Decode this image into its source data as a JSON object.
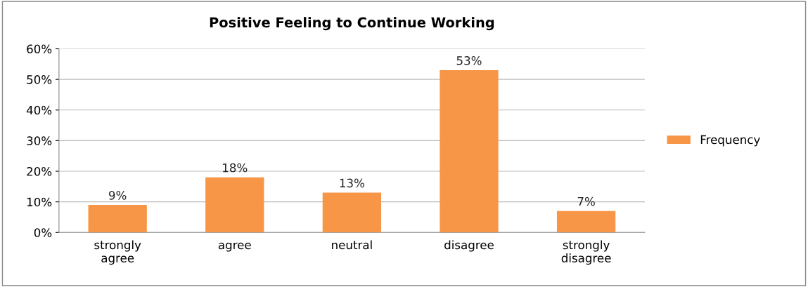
{
  "chart_data": {
    "type": "bar",
    "title": "Positive Feeling to Continue Working",
    "categories": [
      "strongly\nagree",
      "agree",
      "neutral",
      "disagree",
      "strongly\ndisagree"
    ],
    "series": [
      {
        "name": "Frequency",
        "color": "#f79646",
        "values": [
          9,
          18,
          13,
          53,
          7
        ],
        "value_labels": [
          "9%",
          "18%",
          "13%",
          "53%",
          "7%"
        ]
      }
    ],
    "ylim": [
      0,
      60
    ],
    "yticks": [
      {
        "value": 0,
        "label": "0%"
      },
      {
        "value": 10,
        "label": "10%"
      },
      {
        "value": 20,
        "label": "20%"
      },
      {
        "value": 30,
        "label": "30%"
      },
      {
        "value": 40,
        "label": "40%"
      },
      {
        "value": 50,
        "label": "50%"
      },
      {
        "value": 60,
        "label": "60%"
      }
    ],
    "grid": "y",
    "legend": "right"
  }
}
